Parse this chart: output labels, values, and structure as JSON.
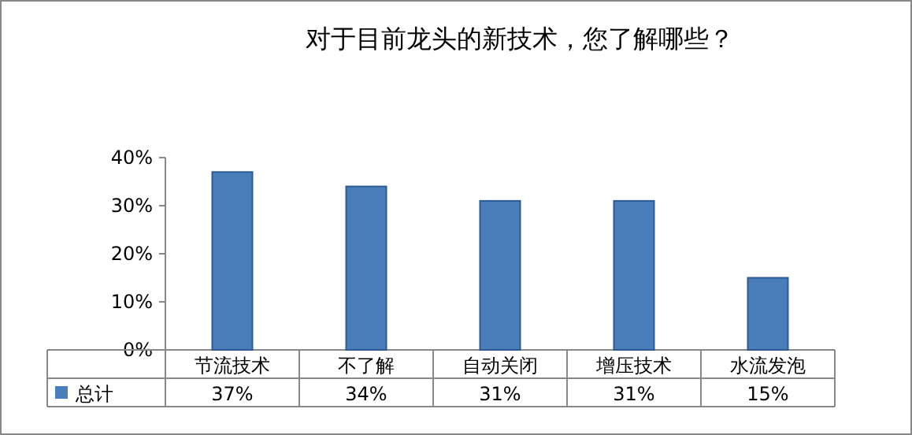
{
  "chart_data": {
    "type": "bar",
    "title": "对于目前龙头的新技术，您了解哪些？",
    "categories": [
      "节流技术",
      "不了解",
      "自动关闭",
      "增压技术",
      "水流发泡"
    ],
    "series": [
      {
        "name": "总计",
        "color": "#4a7ebb",
        "values": [
          37,
          34,
          31,
          31,
          15
        ],
        "value_labels": [
          "37%",
          "34%",
          "31%",
          "31%",
          "15%"
        ]
      }
    ],
    "ylim": [
      0,
      40
    ],
    "yticks": [
      {
        "value": 0,
        "label": "0%"
      },
      {
        "value": 10,
        "label": "10%"
      },
      {
        "value": 20,
        "label": "20%"
      },
      {
        "value": 30,
        "label": "30%"
      },
      {
        "value": 40,
        "label": "40%"
      }
    ],
    "legend": "bottom left"
  }
}
